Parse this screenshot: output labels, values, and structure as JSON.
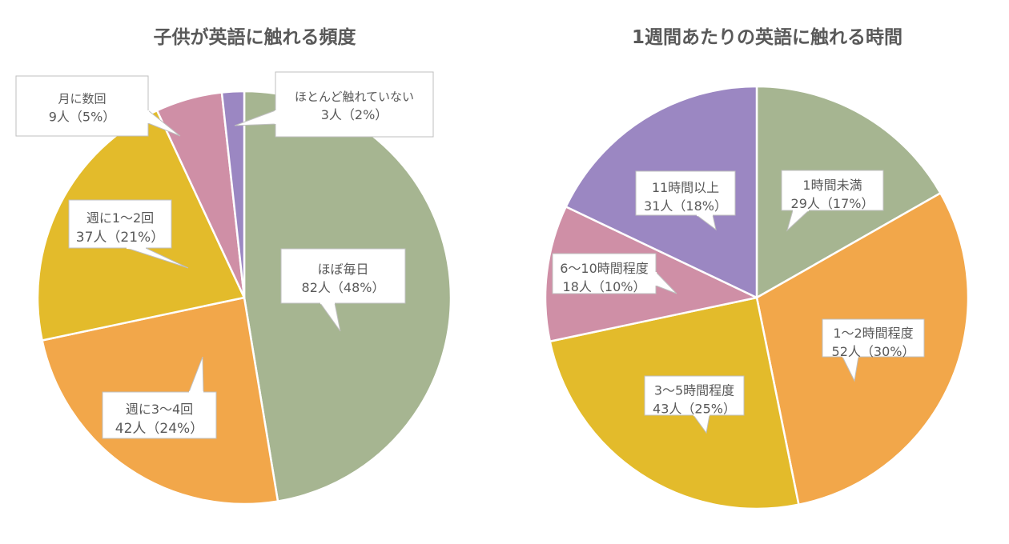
{
  "chart_data": [
    {
      "type": "pie",
      "title": "子供が英語に触れる頻度",
      "slices": [
        {
          "category": "ほぼ毎日",
          "count_label": "82人（48%）",
          "value": 82,
          "percent": 48,
          "color": "#a6b591"
        },
        {
          "category": "週に3〜4回",
          "count_label": "42人（24%）",
          "value": 42,
          "percent": 24,
          "color": "#f2a74a"
        },
        {
          "category": "週に1〜2回",
          "count_label": "37人（21%）",
          "value": 37,
          "percent": 21,
          "color": "#e3bb2b"
        },
        {
          "category": "月に数回",
          "count_label": "9人（5%）",
          "value": 9,
          "percent": 5,
          "color": "#cf8fa6"
        },
        {
          "category": "ほとんど触れていない",
          "count_label": "3人（2%）",
          "value": 3,
          "percent": 2,
          "color": "#9b87c2"
        }
      ]
    },
    {
      "type": "pie",
      "title": "1週間あたりの英語に触れる時間",
      "slices": [
        {
          "category": "1時間未満",
          "count_label": "29人（17%）",
          "value": 29,
          "percent": 17,
          "color": "#a6b591"
        },
        {
          "category": "1〜2時間程度",
          "count_label": "52人（30%）",
          "value": 52,
          "percent": 30,
          "color": "#f2a74a"
        },
        {
          "category": "3〜5時間程度",
          "count_label": "43人（25%）",
          "value": 43,
          "percent": 25,
          "color": "#e3bb2b"
        },
        {
          "category": "6〜10時間程度",
          "count_label": "18人（10%）",
          "value": 18,
          "percent": 10,
          "color": "#cf8fa6"
        },
        {
          "category": "11時間以上",
          "count_label": "31人（18%）",
          "value": 31,
          "percent": 18,
          "color": "#9b87c2"
        }
      ]
    }
  ]
}
